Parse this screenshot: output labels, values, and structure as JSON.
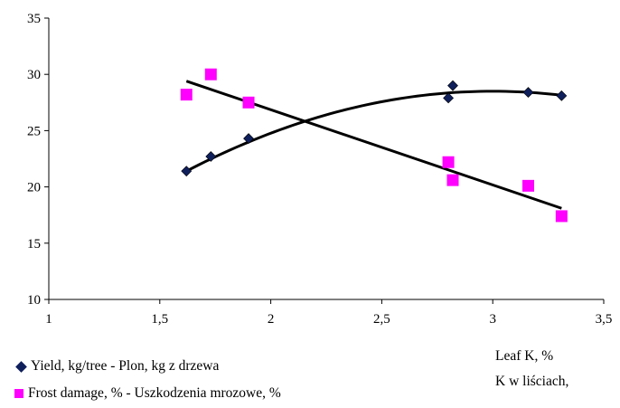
{
  "chart_data": {
    "type": "scatter",
    "xlim": [
      1,
      3.5
    ],
    "ylim": [
      10,
      35
    ],
    "x_ticks": [
      "1",
      "1,5",
      "2",
      "2,5",
      "3",
      "3,5"
    ],
    "y_ticks": [
      "10",
      "15",
      "20",
      "25",
      "30",
      "35"
    ],
    "x_tick_values": [
      1,
      1.5,
      2,
      2.5,
      3,
      3.5
    ],
    "y_tick_values": [
      10,
      15,
      20,
      25,
      30,
      35
    ],
    "xlabel_line1": "Leaf K, %",
    "xlabel_line2": "K w liściach,",
    "grid": false,
    "legend_position": "bottom-left",
    "series": [
      {
        "name": "Yield, kg/tree - Plon, kg z drzewa",
        "marker": "diamond",
        "color": "#0f1f5c",
        "x": [
          1.62,
          1.73,
          1.9,
          2.8,
          2.82,
          3.16,
          3.31
        ],
        "y": [
          21.4,
          22.7,
          24.3,
          27.9,
          29.0,
          28.4,
          28.1
        ],
        "trend": {
          "type": "poly2",
          "x_range": [
            1.62,
            3.31
          ],
          "y_start": 21.4,
          "y_peak": 28.5,
          "x_peak": 3.0,
          "y_end": 28.2
        }
      },
      {
        "name": "Frost damage, % - Uszkodzenia mrozowe, %",
        "marker": "square",
        "color": "#ff00ff",
        "x": [
          1.62,
          1.73,
          1.9,
          2.8,
          2.82,
          3.16,
          3.31
        ],
        "y": [
          28.2,
          30.0,
          27.5,
          22.2,
          20.6,
          20.1,
          17.4
        ],
        "trend": {
          "type": "linear",
          "x_range": [
            1.62,
            3.31
          ],
          "y_start": 29.4,
          "y_end": 18.1
        }
      }
    ]
  }
}
